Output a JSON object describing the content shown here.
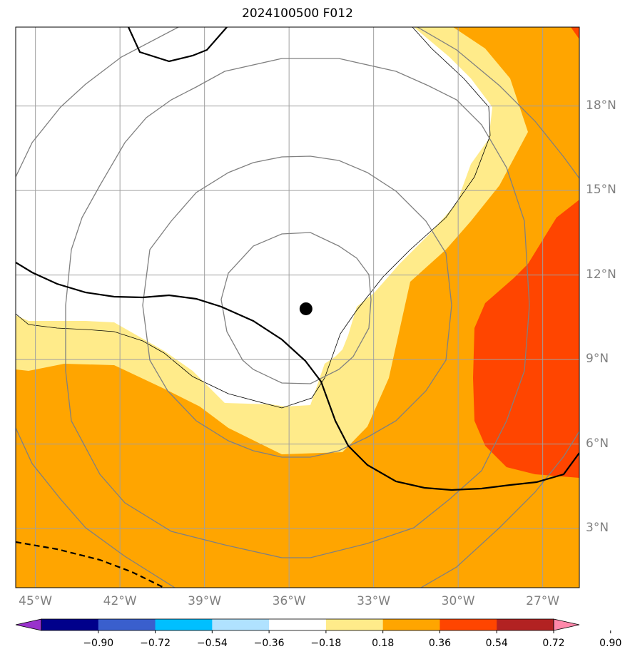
{
  "title": "2024100500 F012",
  "map": {
    "lon_range": [
      -45.7,
      -25.7
    ],
    "lat_range": [
      0.9,
      20.8
    ],
    "storm_center": {
      "lon": -35.4,
      "lat": 10.8
    },
    "latitude_labels": [
      {
        "lat": 18,
        "text": "18°N"
      },
      {
        "lat": 15,
        "text": "15°N"
      },
      {
        "lat": 12,
        "text": "12°N"
      },
      {
        "lat": 9,
        "text": "9°N"
      },
      {
        "lat": 6,
        "text": "6°N"
      },
      {
        "lat": 3,
        "text": "3°N"
      }
    ],
    "longitude_labels": [
      {
        "lon": -45,
        "text": "45°W"
      },
      {
        "lon": -42,
        "text": "42°W"
      },
      {
        "lon": -39,
        "text": "39°W"
      },
      {
        "lon": -36,
        "text": "36°W"
      },
      {
        "lon": -33,
        "text": "33°W"
      },
      {
        "lon": -30,
        "text": "30°W"
      },
      {
        "lon": -27,
        "text": "27°W"
      }
    ]
  },
  "colorbar": {
    "levels": [
      "−0.90",
      "−0.72",
      "−0.54",
      "−0.36",
      "−0.18",
      "0.18",
      "0.36",
      "0.54",
      "0.72",
      "0.90"
    ],
    "colors": [
      "#9932cc",
      "#00008b",
      "#3a5fcd",
      "#00bfff",
      "#b0e2ff",
      "#ffffff",
      "#ffeb8a",
      "#ffa500",
      "#ff4500",
      "#b22222",
      "#ff88aa"
    ]
  },
  "colors": {
    "fill_036_054": "#ffa500",
    "fill_018_036": "#ffeb8a",
    "fill_054_072": "#ff4500",
    "grid": "#a0a0a0",
    "range_rings": "#808080"
  }
}
